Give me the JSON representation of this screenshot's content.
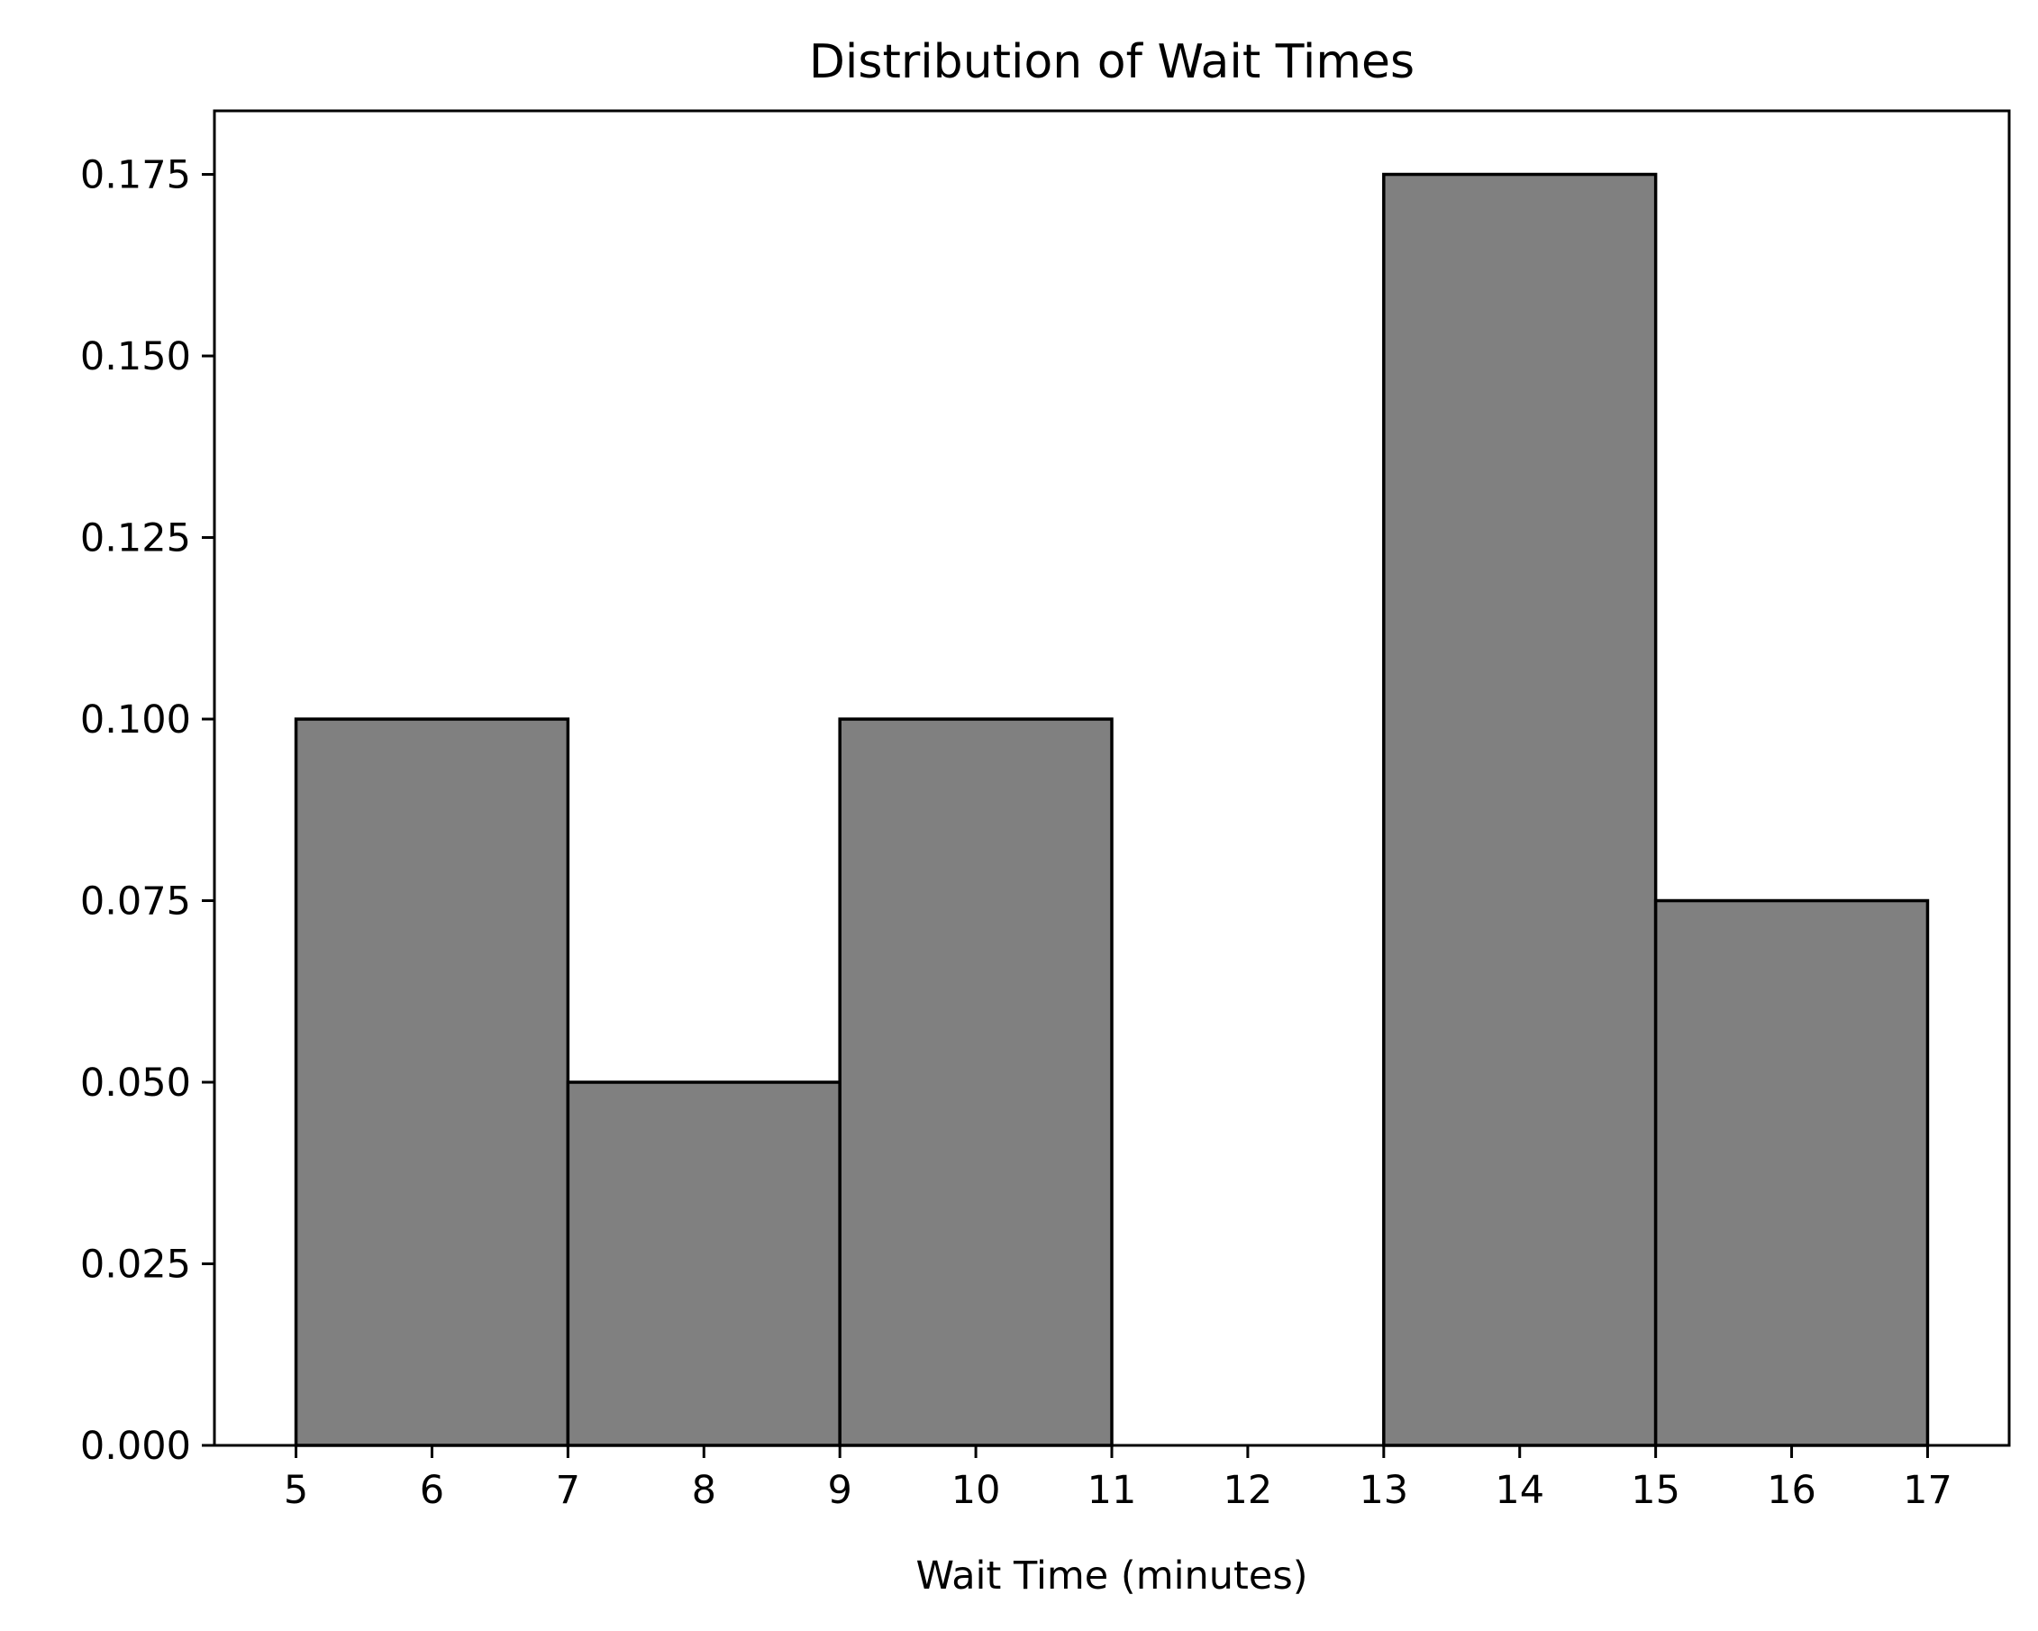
{
  "chart_data": {
    "type": "bar",
    "title": "Distribution of Wait Times",
    "xlabel": "Wait Time (minutes)",
    "ylabel": "",
    "xlim": [
      4.4,
      17.6
    ],
    "ylim": [
      0,
      0.18375
    ],
    "xticks": [
      5,
      6,
      7,
      8,
      9,
      10,
      11,
      12,
      13,
      14,
      15,
      16,
      17
    ],
    "yticks": [
      0.0,
      0.025,
      0.05,
      0.075,
      0.1,
      0.125,
      0.15,
      0.175
    ],
    "ytick_labels": [
      "0.000",
      "0.025",
      "0.050",
      "0.075",
      "0.100",
      "0.125",
      "0.150",
      "0.175"
    ],
    "bins": [
      {
        "start": 5,
        "end": 7,
        "value": 0.1
      },
      {
        "start": 7,
        "end": 9,
        "value": 0.05
      },
      {
        "start": 9,
        "end": 11,
        "value": 0.1
      },
      {
        "start": 11,
        "end": 13,
        "value": 0.0
      },
      {
        "start": 13,
        "end": 15,
        "value": 0.175
      },
      {
        "start": 15,
        "end": 17,
        "value": 0.075
      }
    ],
    "bar_color": "#808080",
    "edge_color": "#000000",
    "grid": false,
    "legend": "none"
  }
}
